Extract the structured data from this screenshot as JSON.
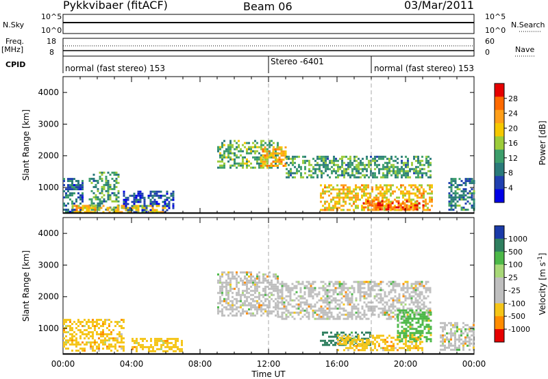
{
  "header": {
    "title": "Pykkvibaer (fitACF)",
    "beam": "Beam 06",
    "date": "03/Mar/2011"
  },
  "nsky_panel": {
    "left_label": "N.Sky",
    "left_ticks": [
      "10^5",
      "10^0"
    ],
    "right_label": "N.Search",
    "right_ticks": [
      "10^5",
      "10^0"
    ]
  },
  "freq_panel": {
    "left_label_line1": "Freq.",
    "left_label_line2": "[MHz]",
    "left_ticks": [
      "18",
      "8"
    ],
    "right_label": "Nave",
    "right_ticks": [
      "60",
      "0"
    ]
  },
  "cpid_panel": {
    "label": "CPID",
    "segments": [
      {
        "text": "normal (fast stereo) 153",
        "start_hour": 0
      },
      {
        "text": "Stereo -6401",
        "start_hour": 12
      },
      {
        "text": "normal (fast stereo) 153",
        "start_hour": 18
      }
    ]
  },
  "power_colorbar": {
    "label": "Power [dB]",
    "ticks": [
      "28",
      "24",
      "20",
      "16",
      "12",
      "8",
      "4"
    ],
    "colors": [
      "#e60000",
      "#ff6a00",
      "#ff9f1a",
      "#f5c800",
      "#9ccc3a",
      "#3d9e6b",
      "#2a7a7a",
      "#2040b0",
      "#0000e6"
    ]
  },
  "velocity_colorbar": {
    "label": "Velocity [m s",
    "label_sup": "-1",
    "label_end": "]",
    "ticks": [
      "1000",
      "500",
      "100",
      "25",
      "-25",
      "-100",
      "-500",
      "-1000"
    ],
    "colors": [
      "#1a3aa8",
      "#2f7f5f",
      "#4cb848",
      "#a8d878",
      "#bfbfbf",
      "#bfbfbf",
      "#f5c518",
      "#ff8c00",
      "#e60000"
    ]
  },
  "time_axis": {
    "label": "Time UT",
    "ticks": [
      "00:00",
      "04:00",
      "08:00",
      "12:00",
      "16:00",
      "20:00",
      "00:00"
    ]
  },
  "chart_data": [
    {
      "type": "heatmap",
      "name": "power",
      "ylabel": "Slant Range [km]",
      "xlabel": "Time UT",
      "xlim_hours": [
        0,
        24
      ],
      "ylim": [
        180,
        4500
      ],
      "yticks": [
        1000,
        2000,
        3000,
        4000
      ],
      "vertical_markers_hours": [
        12,
        18
      ],
      "regions": [
        {
          "t0": 0.0,
          "t1": 1.2,
          "r0": 250,
          "r1": 1300,
          "power": 8
        },
        {
          "t0": 1.5,
          "t1": 3.2,
          "r0": 300,
          "r1": 1500,
          "power": 12
        },
        {
          "t0": 3.5,
          "t1": 6.5,
          "r0": 250,
          "r1": 900,
          "power": 6
        },
        {
          "t0": 0.5,
          "t1": 6.0,
          "r0": 250,
          "r1": 450,
          "power": 20
        },
        {
          "t0": 9.0,
          "t1": 12.5,
          "r0": 1600,
          "r1": 2500,
          "power": 14
        },
        {
          "t0": 11.5,
          "t1": 13.0,
          "r0": 1700,
          "r1": 2300,
          "power": 22
        },
        {
          "t0": 13.0,
          "t1": 21.5,
          "r0": 1300,
          "r1": 2000,
          "power": 12
        },
        {
          "t0": 15.0,
          "t1": 21.5,
          "r0": 300,
          "r1": 1100,
          "power": 20
        },
        {
          "t0": 17.5,
          "t1": 21.0,
          "r0": 300,
          "r1": 600,
          "power": 28
        },
        {
          "t0": 22.5,
          "t1": 24.0,
          "r0": 300,
          "r1": 1300,
          "power": 10
        }
      ]
    },
    {
      "type": "heatmap",
      "name": "velocity",
      "ylabel": "Slant Range [km]",
      "xlabel": "Time UT",
      "xlim_hours": [
        0,
        24
      ],
      "ylim": [
        180,
        4500
      ],
      "yticks": [
        1000,
        2000,
        3000,
        4000
      ],
      "vertical_markers_hours": [
        12,
        18
      ],
      "regions": [
        {
          "t0": 0.0,
          "t1": 3.5,
          "r0": 300,
          "r1": 1300,
          "velocity": -100
        },
        {
          "t0": 4.0,
          "t1": 7.0,
          "r0": 250,
          "r1": 700,
          "velocity": -100
        },
        {
          "t0": 9.0,
          "t1": 12.5,
          "r0": 1400,
          "r1": 2800,
          "velocity": 0
        },
        {
          "t0": 12.5,
          "t1": 21.5,
          "r0": 1300,
          "r1": 2500,
          "velocity": 0
        },
        {
          "t0": 15.0,
          "t1": 18.0,
          "r0": 500,
          "r1": 900,
          "velocity": 500
        },
        {
          "t0": 16.0,
          "t1": 21.0,
          "r0": 300,
          "r1": 800,
          "velocity": -100
        },
        {
          "t0": 19.5,
          "t1": 21.5,
          "r0": 600,
          "r1": 1600,
          "velocity": 100
        },
        {
          "t0": 22.0,
          "t1": 24.0,
          "r0": 300,
          "r1": 1200,
          "velocity": 0
        }
      ]
    }
  ]
}
